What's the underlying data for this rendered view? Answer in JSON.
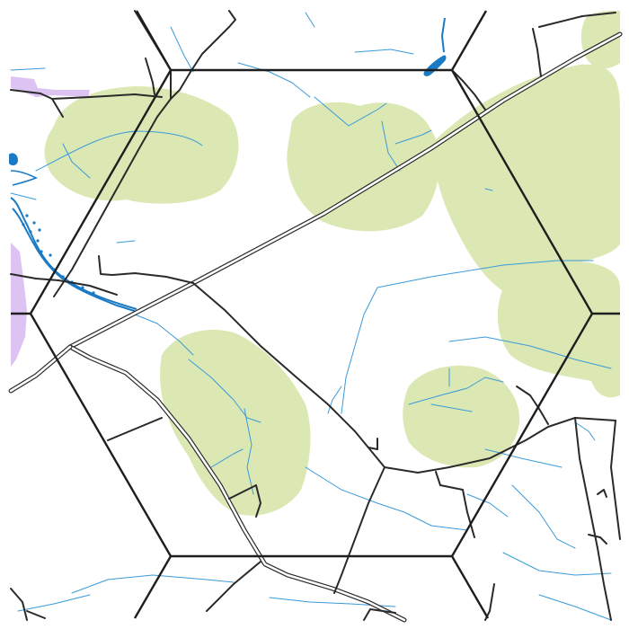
{
  "map": {
    "colors": {
      "background": "#ffffff",
      "forest": "#dce8b4",
      "water": "#1a7ac4",
      "stream": "#3a9ad9",
      "road_casing": "#2a2a2a",
      "road_fill": "#ffffff",
      "hex_grid": "#1e1e1e",
      "restricted_area": "#d6b8f0"
    },
    "layers": [
      "forest",
      "restricted-area",
      "water",
      "streams",
      "roads",
      "hex-grid"
    ],
    "symbols": {
      "hex_grid": "hexagon-grid",
      "forest": "woodland-patch",
      "water": "lake-and-river",
      "roads": "double-line-road"
    }
  }
}
